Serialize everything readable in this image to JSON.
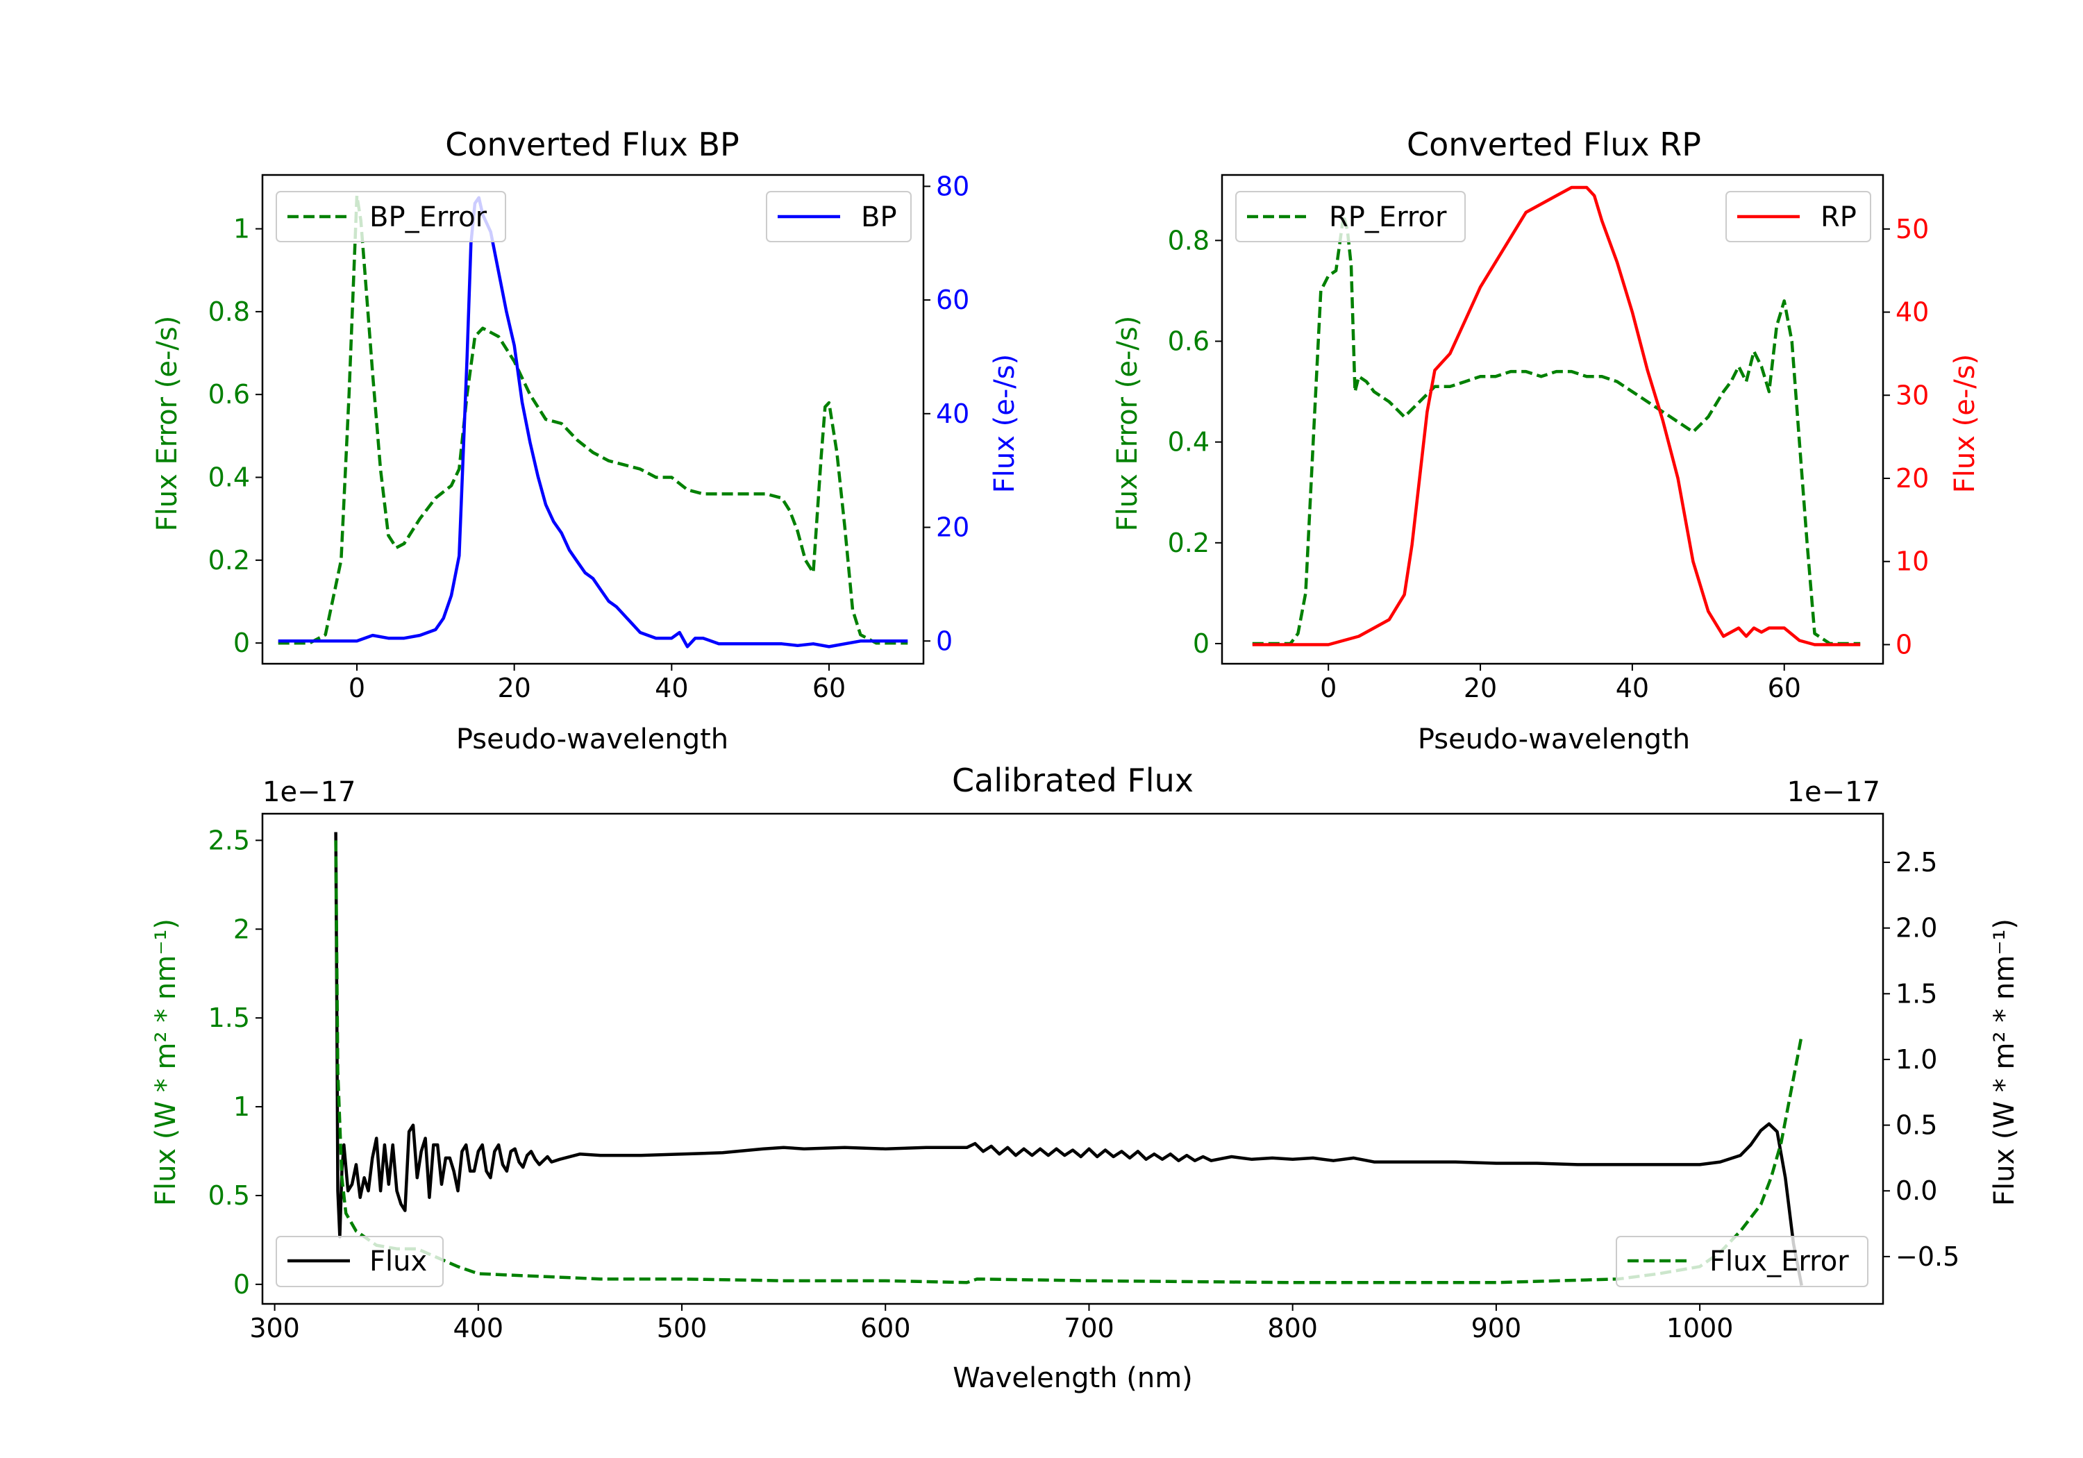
{
  "colors": {
    "error": "#008000",
    "bp": "#0000ff",
    "rp": "#ff0000",
    "flux": "#000000",
    "axis": "#000000"
  },
  "chart_data": [
    {
      "id": "bp",
      "type": "line",
      "title": "Converted Flux BP",
      "xlabel": "Pseudo-wavelength",
      "ylabel_left": "Flux Error (e-/s)",
      "ylabel_right": "Flux (e-/s)",
      "xlim": [
        -12,
        72
      ],
      "ylim_left": [
        -0.05,
        1.13
      ],
      "ylim_right": [
        -4,
        82
      ],
      "xticks": [
        0,
        20,
        40,
        60
      ],
      "yticks_left": [
        0.0,
        0.2,
        0.4,
        0.6,
        0.8,
        1.0
      ],
      "yticks_right": [
        0,
        20,
        40,
        60,
        80
      ],
      "legend_left": "BP_Error",
      "legend_right": "BP",
      "series": [
        {
          "name": "BP_Error",
          "axis": "left",
          "style": "dashed",
          "color": "#008000",
          "x": [
            -10,
            -6,
            -4,
            -2,
            -1,
            0,
            0.5,
            1,
            2,
            3,
            4,
            5,
            6,
            8,
            10,
            12,
            13,
            14,
            15,
            16,
            18,
            20,
            22,
            24,
            26,
            28,
            30,
            32,
            34,
            36,
            38,
            40,
            42,
            44,
            46,
            48,
            50,
            52,
            54,
            55,
            56,
            57,
            58,
            59,
            59.5,
            60,
            61,
            62,
            63,
            64,
            66,
            68,
            70
          ],
          "y": [
            0.0,
            0.0,
            0.02,
            0.2,
            0.6,
            1.08,
            1.02,
            0.9,
            0.65,
            0.42,
            0.26,
            0.23,
            0.24,
            0.3,
            0.35,
            0.38,
            0.42,
            0.6,
            0.74,
            0.76,
            0.74,
            0.68,
            0.6,
            0.54,
            0.53,
            0.49,
            0.46,
            0.44,
            0.43,
            0.42,
            0.4,
            0.4,
            0.37,
            0.36,
            0.36,
            0.36,
            0.36,
            0.36,
            0.35,
            0.32,
            0.27,
            0.2,
            0.17,
            0.45,
            0.57,
            0.58,
            0.46,
            0.28,
            0.08,
            0.02,
            0.0,
            0.0,
            0.0
          ]
        },
        {
          "name": "BP",
          "axis": "right",
          "style": "solid",
          "color": "#0000ff",
          "x": [
            -10,
            -5,
            0,
            2,
            4,
            6,
            8,
            10,
            11,
            12,
            13,
            14,
            14.5,
            15,
            15.5,
            16,
            17,
            18,
            19,
            20,
            21,
            22,
            23,
            24,
            25,
            26,
            27,
            28,
            29,
            30,
            31,
            32,
            33,
            34,
            35,
            36,
            37,
            38,
            39,
            40,
            41,
            42,
            43,
            44,
            46,
            48,
            50,
            52,
            54,
            56,
            58,
            60,
            62,
            64,
            66,
            68,
            70
          ],
          "y": [
            0,
            0,
            0,
            1,
            0.5,
            0.5,
            1,
            2,
            4,
            8,
            15,
            50,
            70,
            77,
            78,
            75,
            72,
            65,
            58,
            52,
            42,
            35,
            29,
            24,
            21,
            19,
            16,
            14,
            12,
            11,
            9,
            7,
            6,
            4.5,
            3,
            1.5,
            1,
            0.5,
            0.5,
            0.5,
            1.5,
            -1,
            0.5,
            0.5,
            -0.5,
            -0.5,
            -0.5,
            -0.5,
            -0.5,
            -0.8,
            -0.5,
            -1,
            -0.5,
            0,
            0,
            0,
            0
          ]
        }
      ]
    },
    {
      "id": "rp",
      "type": "line",
      "title": "Converted Flux RP",
      "xlabel": "Pseudo-wavelength",
      "ylabel_left": "Flux Error (e-/s)",
      "ylabel_right": "Flux (e-/s)",
      "xlim": [
        -14,
        73
      ],
      "ylim_left": [
        -0.04,
        0.93
      ],
      "ylim_right": [
        -2.3,
        56.5
      ],
      "xticks": [
        0,
        20,
        40,
        60
      ],
      "yticks_left": [
        0.0,
        0.2,
        0.4,
        0.6,
        0.8
      ],
      "yticks_right": [
        0,
        10,
        20,
        30,
        40,
        50
      ],
      "legend_left": "RP_Error",
      "legend_right": "RP",
      "series": [
        {
          "name": "RP_Error",
          "axis": "left",
          "style": "dashed",
          "color": "#008000",
          "x": [
            -10,
            -5,
            -4,
            -3,
            -2,
            -1,
            0,
            1,
            2,
            2.5,
            3,
            3.5,
            4,
            5,
            6,
            8,
            10,
            12,
            14,
            16,
            18,
            20,
            22,
            24,
            26,
            28,
            30,
            32,
            34,
            36,
            38,
            40,
            42,
            44,
            46,
            48,
            50,
            52,
            53,
            54,
            55,
            56,
            57,
            58,
            59,
            60,
            61,
            62,
            63,
            64,
            66,
            68,
            70
          ],
          "y": [
            0.0,
            0.0,
            0.02,
            0.1,
            0.4,
            0.7,
            0.73,
            0.74,
            0.85,
            0.82,
            0.75,
            0.5,
            0.53,
            0.52,
            0.5,
            0.48,
            0.45,
            0.48,
            0.51,
            0.51,
            0.52,
            0.53,
            0.53,
            0.54,
            0.54,
            0.53,
            0.54,
            0.54,
            0.53,
            0.53,
            0.52,
            0.5,
            0.48,
            0.46,
            0.44,
            0.42,
            0.45,
            0.5,
            0.52,
            0.55,
            0.52,
            0.58,
            0.55,
            0.5,
            0.63,
            0.68,
            0.6,
            0.4,
            0.2,
            0.02,
            0.0,
            0.0,
            0.0
          ]
        },
        {
          "name": "RP",
          "axis": "right",
          "style": "solid",
          "color": "#ff0000",
          "x": [
            -10,
            -5,
            0,
            2,
            4,
            6,
            8,
            10,
            11,
            12,
            13,
            14,
            15,
            16,
            18,
            20,
            22,
            24,
            26,
            28,
            30,
            32,
            34,
            35,
            36,
            38,
            40,
            42,
            44,
            46,
            48,
            50,
            52,
            54,
            55,
            56,
            57,
            58,
            60,
            62,
            64,
            66,
            70
          ],
          "y": [
            0,
            0,
            0,
            0.5,
            1,
            2,
            3,
            6,
            12,
            20,
            28,
            33,
            34,
            35,
            39,
            43,
            46,
            49,
            52,
            53,
            54,
            55,
            55,
            54,
            51,
            46,
            40,
            33,
            27,
            20,
            10,
            4,
            1,
            2,
            1,
            2,
            1.5,
            2,
            2,
            0.5,
            0,
            0,
            0
          ]
        }
      ]
    },
    {
      "id": "calibrated",
      "type": "line",
      "title": "Calibrated Flux",
      "xlabel": "Wavelength (nm)",
      "ylabel_left": "Flux (W * m² * nm⁻¹)",
      "ylabel_right": "Flux (W * m² * nm⁻¹)",
      "offset_left": "1e−17",
      "offset_right": "1e−17",
      "xlim": [
        294,
        1090
      ],
      "ylim_left": [
        -0.11,
        2.65
      ],
      "ylim_right": [
        -0.86,
        2.87
      ],
      "xticks": [
        300,
        400,
        500,
        600,
        700,
        800,
        900,
        1000
      ],
      "yticks_left": [
        0.0,
        0.5,
        1.0,
        1.5,
        2.0,
        2.5
      ],
      "yticks_right": [
        -0.5,
        0.0,
        0.5,
        1.0,
        1.5,
        2.0,
        2.5
      ],
      "yticks_right_labels": [
        "−0.5",
        "0.0",
        "0.5",
        "1.0",
        "1.5",
        "2.0",
        "2.5"
      ],
      "legend_left": "Flux",
      "legend_right": "Flux_Error",
      "series": [
        {
          "name": "Flux",
          "axis": "right",
          "style": "solid",
          "color": "#000000",
          "x": [
            330,
            330.5,
            331,
            332,
            333,
            334,
            336,
            338,
            340,
            342,
            344,
            346,
            348,
            350,
            352,
            354,
            356,
            358,
            360,
            362,
            364,
            366,
            368,
            370,
            372,
            374,
            376,
            378,
            380,
            382,
            384,
            386,
            388,
            390,
            392,
            394,
            396,
            398,
            400,
            402,
            404,
            406,
            408,
            410,
            412,
            414,
            416,
            418,
            420,
            422,
            424,
            426,
            428,
            430,
            432,
            434,
            436,
            440,
            450,
            460,
            480,
            500,
            520,
            540,
            550,
            560,
            580,
            600,
            620,
            640,
            644,
            648,
            652,
            656,
            660,
            664,
            668,
            672,
            676,
            680,
            684,
            688,
            692,
            696,
            700,
            704,
            708,
            712,
            716,
            720,
            724,
            728,
            732,
            736,
            740,
            744,
            748,
            752,
            756,
            760,
            770,
            780,
            790,
            800,
            810,
            820,
            830,
            840,
            860,
            880,
            900,
            920,
            940,
            960,
            980,
            1000,
            1010,
            1020,
            1025,
            1030,
            1034,
            1038,
            1042,
            1046,
            1050
          ],
          "y": [
            2.73,
            1.5,
            0.0,
            -0.35,
            0.15,
            0.35,
            0.0,
            0.05,
            0.2,
            -0.05,
            0.1,
            0.0,
            0.25,
            0.4,
            0.0,
            0.35,
            0.05,
            0.35,
            0.0,
            -0.1,
            -0.15,
            0.45,
            0.5,
            0.1,
            0.3,
            0.4,
            -0.05,
            0.35,
            0.35,
            0.05,
            0.25,
            0.25,
            0.15,
            0.0,
            0.3,
            0.35,
            0.15,
            0.15,
            0.3,
            0.35,
            0.15,
            0.1,
            0.3,
            0.35,
            0.2,
            0.15,
            0.3,
            0.32,
            0.22,
            0.18,
            0.27,
            0.3,
            0.24,
            0.2,
            0.23,
            0.26,
            0.22,
            0.24,
            0.28,
            0.27,
            0.27,
            0.28,
            0.29,
            0.32,
            0.33,
            0.32,
            0.33,
            0.32,
            0.33,
            0.33,
            0.36,
            0.3,
            0.34,
            0.28,
            0.33,
            0.27,
            0.32,
            0.27,
            0.32,
            0.27,
            0.32,
            0.27,
            0.31,
            0.26,
            0.32,
            0.26,
            0.31,
            0.26,
            0.3,
            0.25,
            0.3,
            0.24,
            0.28,
            0.24,
            0.28,
            0.23,
            0.27,
            0.23,
            0.26,
            0.23,
            0.26,
            0.24,
            0.25,
            0.24,
            0.25,
            0.23,
            0.25,
            0.22,
            0.22,
            0.22,
            0.21,
            0.21,
            0.2,
            0.2,
            0.2,
            0.2,
            0.22,
            0.27,
            0.35,
            0.46,
            0.51,
            0.45,
            0.1,
            -0.4,
            -0.72
          ]
        },
        {
          "name": "Flux_Error",
          "axis": "left",
          "style": "dashed",
          "color": "#008000",
          "x": [
            330,
            331,
            333,
            335,
            340,
            350,
            360,
            370,
            380,
            390,
            400,
            420,
            440,
            460,
            480,
            500,
            550,
            600,
            640,
            645,
            700,
            800,
            900,
            960,
            980,
            1000,
            1010,
            1020,
            1030,
            1035,
            1040,
            1045,
            1050
          ],
          "y": [
            2.5,
            1.2,
            0.6,
            0.4,
            0.3,
            0.22,
            0.2,
            0.2,
            0.15,
            0.1,
            0.06,
            0.05,
            0.04,
            0.03,
            0.03,
            0.03,
            0.02,
            0.02,
            0.01,
            0.03,
            0.02,
            0.01,
            0.01,
            0.03,
            0.06,
            0.1,
            0.18,
            0.3,
            0.45,
            0.6,
            0.8,
            1.1,
            1.4
          ]
        }
      ]
    }
  ]
}
